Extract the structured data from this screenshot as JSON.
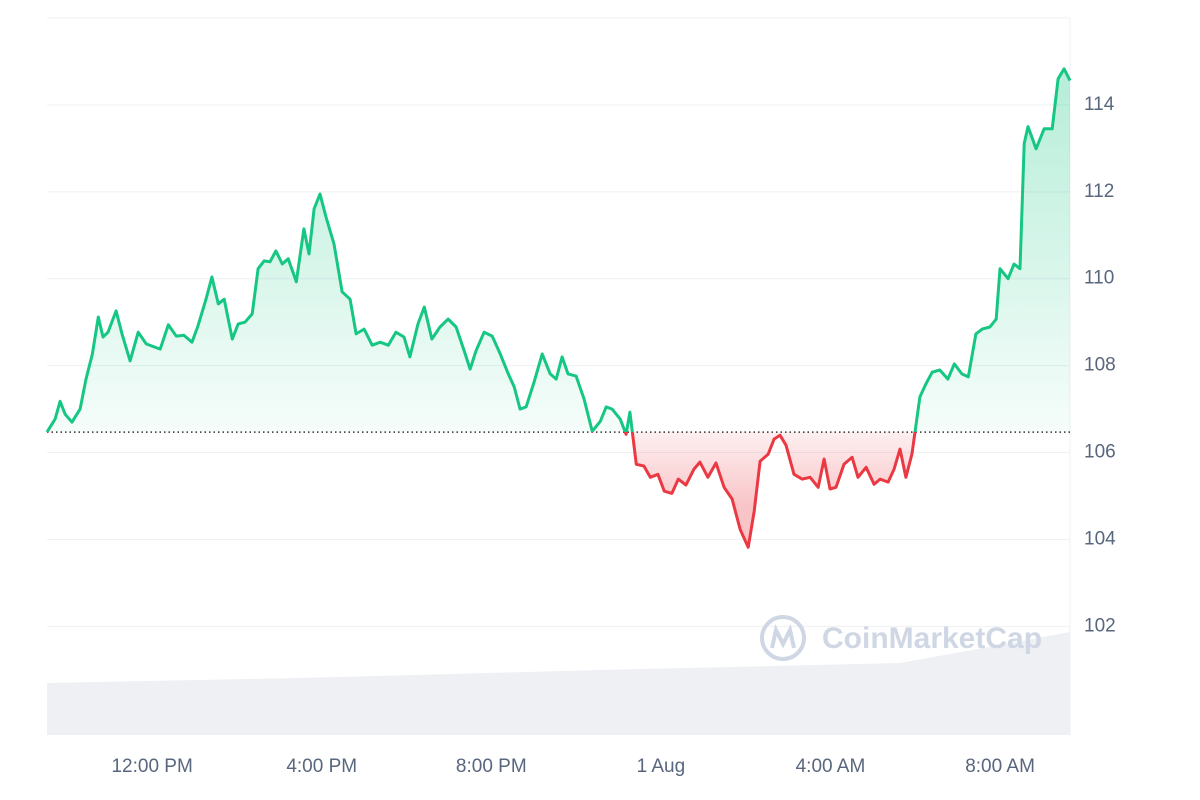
{
  "chart_data": {
    "type": "line",
    "watermark": "CoinMarketCap",
    "x": [
      9.52,
      9.71,
      9.83,
      9.95,
      10.11,
      10.3,
      10.44,
      10.59,
      10.73,
      10.84,
      10.96,
      11.15,
      11.29,
      11.48,
      11.67,
      11.86,
      12.0,
      12.19,
      12.38,
      12.57,
      12.75,
      12.94,
      13.08,
      13.27,
      13.41,
      13.56,
      13.7,
      13.89,
      14.03,
      14.19,
      14.36,
      14.5,
      14.64,
      14.78,
      14.92,
      15.07,
      15.21,
      15.4,
      15.58,
      15.7,
      15.82,
      15.96,
      16.1,
      16.29,
      16.48,
      16.67,
      16.81,
      17.0,
      17.19,
      17.38,
      17.57,
      17.75,
      17.94,
      18.08,
      18.27,
      18.42,
      18.6,
      18.79,
      18.98,
      19.17,
      19.36,
      19.5,
      19.64,
      19.83,
      20.02,
      20.21,
      20.4,
      20.54,
      20.68,
      20.82,
      21.01,
      21.2,
      21.39,
      21.53,
      21.67,
      21.81,
      22.0,
      22.19,
      22.38,
      22.57,
      22.71,
      22.85,
      23.04,
      23.18,
      23.27,
      23.42,
      23.6,
      23.75,
      23.93,
      24.08,
      24.26,
      24.41,
      24.59,
      24.78,
      24.92,
      25.11,
      25.3,
      25.49,
      25.68,
      25.87,
      26.06,
      26.2,
      26.34,
      26.53,
      26.67,
      26.81,
      26.95,
      27.14,
      27.33,
      27.52,
      27.71,
      27.85,
      27.99,
      28.13,
      28.32,
      28.51,
      28.65,
      28.84,
      29.03,
      29.17,
      29.36,
      29.5,
      29.64,
      29.78,
      29.92,
      30.11,
      30.25,
      30.4,
      30.58,
      30.77,
      30.92,
      31.1,
      31.25,
      31.43,
      31.58,
      31.76,
      31.91,
      32.0,
      32.19,
      32.33,
      32.47,
      32.57,
      32.66,
      32.85,
      33.04,
      33.23,
      33.37,
      33.51,
      33.65
    ],
    "values": [
      106.47,
      106.77,
      107.18,
      106.88,
      106.7,
      107.0,
      107.69,
      108.27,
      109.12,
      108.66,
      108.77,
      109.26,
      108.73,
      108.11,
      108.77,
      108.5,
      108.45,
      108.38,
      108.94,
      108.68,
      108.7,
      108.54,
      108.91,
      109.53,
      110.04,
      109.42,
      109.53,
      108.61,
      108.96,
      109.0,
      109.19,
      110.23,
      110.41,
      110.39,
      110.64,
      110.34,
      110.46,
      109.93,
      111.15,
      110.57,
      111.61,
      111.95,
      111.42,
      110.8,
      109.7,
      109.53,
      108.73,
      108.84,
      108.47,
      108.54,
      108.47,
      108.77,
      108.66,
      108.2,
      108.96,
      109.35,
      108.61,
      108.89,
      109.07,
      108.89,
      108.34,
      107.92,
      108.34,
      108.77,
      108.68,
      108.27,
      107.81,
      107.51,
      107.0,
      107.05,
      107.62,
      108.27,
      107.81,
      107.69,
      108.2,
      107.81,
      107.76,
      107.23,
      106.49,
      106.72,
      107.05,
      107.0,
      106.77,
      106.42,
      106.93,
      105.73,
      105.69,
      105.43,
      105.5,
      105.11,
      105.06,
      105.39,
      105.25,
      105.62,
      105.78,
      105.43,
      105.76,
      105.2,
      104.93,
      104.23,
      103.82,
      104.65,
      105.8,
      105.96,
      106.31,
      106.4,
      106.17,
      105.5,
      105.39,
      105.43,
      105.2,
      105.85,
      105.16,
      105.2,
      105.73,
      105.89,
      105.43,
      105.66,
      105.27,
      105.39,
      105.32,
      105.62,
      106.08,
      105.43,
      105.96,
      107.28,
      107.58,
      107.85,
      107.9,
      107.69,
      108.04,
      107.81,
      107.74,
      108.73,
      108.84,
      108.89,
      109.07,
      110.23,
      110.0,
      110.34,
      110.23,
      113.11,
      113.5,
      112.99,
      113.45,
      113.45,
      114.6,
      114.83,
      114.56
    ],
    "baseline": 106.47,
    "up_color": "#16c784",
    "down_color": "#ea3943",
    "xlim": [
      9.52,
      33.65
    ],
    "xticks": [
      {
        "value": 12,
        "label": "12:00 PM"
      },
      {
        "value": 16,
        "label": "4:00 PM"
      },
      {
        "value": 20,
        "label": "8:00 PM"
      },
      {
        "value": 24,
        "label": "1 Aug"
      },
      {
        "value": 28,
        "label": "4:00 AM"
      },
      {
        "value": 32,
        "label": "8:00 AM"
      }
    ],
    "ylim": [
      99.5,
      116
    ],
    "yticks": [
      102,
      104,
      106,
      108,
      110,
      112,
      114
    ],
    "grid": true
  }
}
